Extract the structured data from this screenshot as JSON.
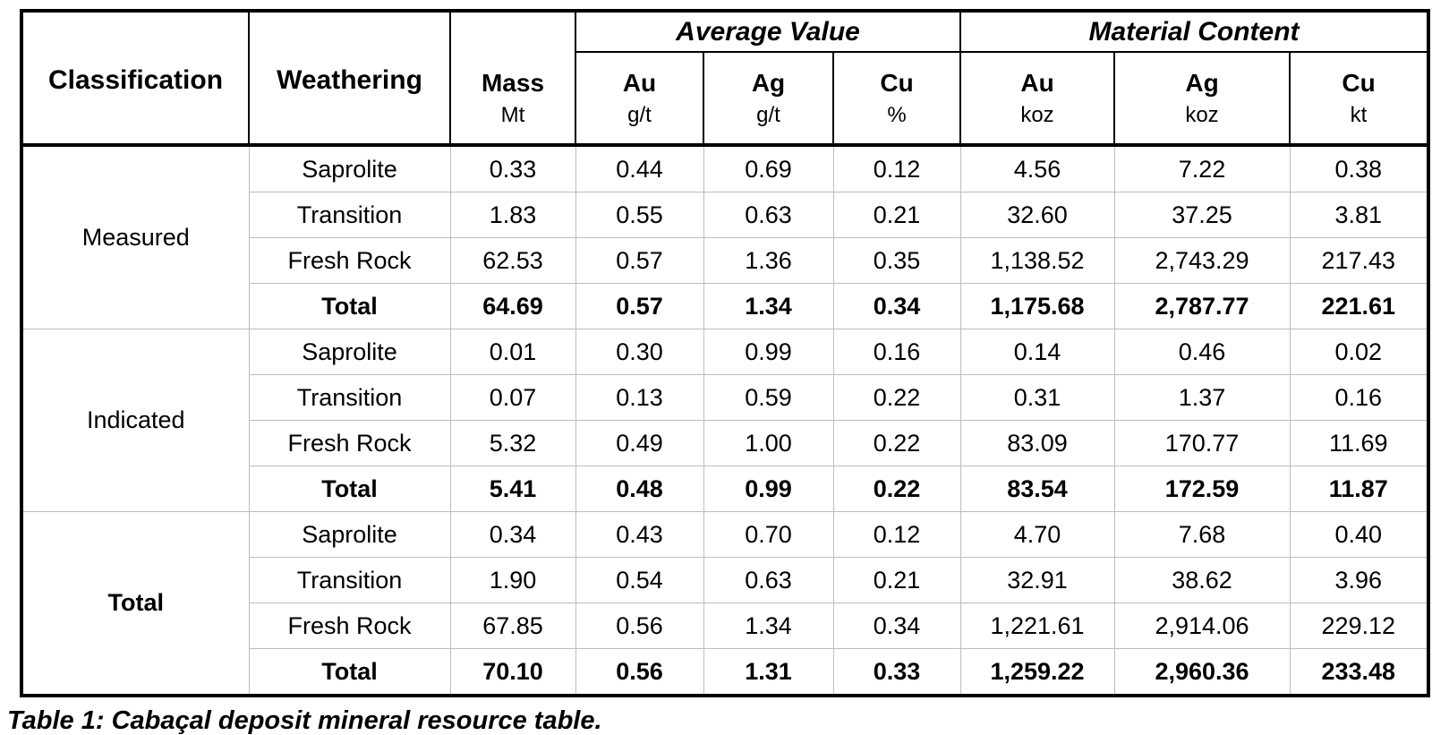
{
  "colors": {
    "background": "#ffffff",
    "heavy_border": "#000000",
    "gridline_gray": "#bdbdbd",
    "text": "#000000"
  },
  "table": {
    "header": {
      "classification": "Classification",
      "weathering": "Weathering",
      "mass_label": "Mass",
      "mass_unit": "Mt",
      "groups": [
        {
          "label": "Average Value",
          "columns": [
            {
              "element": "Au",
              "unit": "g/t"
            },
            {
              "element": "Ag",
              "unit": "g/t"
            },
            {
              "element": "Cu",
              "unit": "%"
            }
          ]
        },
        {
          "label": "Material Content",
          "columns": [
            {
              "element": "Au",
              "unit": "koz"
            },
            {
              "element": "Ag",
              "unit": "koz"
            },
            {
              "element": "Cu",
              "unit": "kt"
            }
          ]
        }
      ]
    },
    "sections": [
      {
        "classification": "Measured",
        "bold_classification": false,
        "rows": [
          {
            "weathering": "Saprolite",
            "mass": "0.33",
            "au_gt": "0.44",
            "ag_gt": "0.69",
            "cu_pct": "0.12",
            "au_koz": "4.56",
            "ag_koz": "7.22",
            "cu_kt": "0.38",
            "bold": false
          },
          {
            "weathering": "Transition",
            "mass": "1.83",
            "au_gt": "0.55",
            "ag_gt": "0.63",
            "cu_pct": "0.21",
            "au_koz": "32.60",
            "ag_koz": "37.25",
            "cu_kt": "3.81",
            "bold": false
          },
          {
            "weathering": "Fresh Rock",
            "mass": "62.53",
            "au_gt": "0.57",
            "ag_gt": "1.36",
            "cu_pct": "0.35",
            "au_koz": "1,138.52",
            "ag_koz": "2,743.29",
            "cu_kt": "217.43",
            "bold": false
          },
          {
            "weathering": "Total",
            "mass": "64.69",
            "au_gt": "0.57",
            "ag_gt": "1.34",
            "cu_pct": "0.34",
            "au_koz": "1,175.68",
            "ag_koz": "2,787.77",
            "cu_kt": "221.61",
            "bold": true
          }
        ]
      },
      {
        "classification": "Indicated",
        "bold_classification": false,
        "rows": [
          {
            "weathering": "Saprolite",
            "mass": "0.01",
            "au_gt": "0.30",
            "ag_gt": "0.99",
            "cu_pct": "0.16",
            "au_koz": "0.14",
            "ag_koz": "0.46",
            "cu_kt": "0.02",
            "bold": false
          },
          {
            "weathering": "Transition",
            "mass": "0.07",
            "au_gt": "0.13",
            "ag_gt": "0.59",
            "cu_pct": "0.22",
            "au_koz": "0.31",
            "ag_koz": "1.37",
            "cu_kt": "0.16",
            "bold": false
          },
          {
            "weathering": "Fresh Rock",
            "mass": "5.32",
            "au_gt": "0.49",
            "ag_gt": "1.00",
            "cu_pct": "0.22",
            "au_koz": "83.09",
            "ag_koz": "170.77",
            "cu_kt": "11.69",
            "bold": false
          },
          {
            "weathering": "Total",
            "mass": "5.41",
            "au_gt": "0.48",
            "ag_gt": "0.99",
            "cu_pct": "0.22",
            "au_koz": "83.54",
            "ag_koz": "172.59",
            "cu_kt": "11.87",
            "bold": true
          }
        ]
      },
      {
        "classification": "Total",
        "bold_classification": true,
        "rows": [
          {
            "weathering": "Saprolite",
            "mass": "0.34",
            "au_gt": "0.43",
            "ag_gt": "0.70",
            "cu_pct": "0.12",
            "au_koz": "4.70",
            "ag_koz": "7.68",
            "cu_kt": "0.40",
            "bold": false
          },
          {
            "weathering": "Transition",
            "mass": "1.90",
            "au_gt": "0.54",
            "ag_gt": "0.63",
            "cu_pct": "0.21",
            "au_koz": "32.91",
            "ag_koz": "38.62",
            "cu_kt": "3.96",
            "bold": false
          },
          {
            "weathering": "Fresh Rock",
            "mass": "67.85",
            "au_gt": "0.56",
            "ag_gt": "1.34",
            "cu_pct": "0.34",
            "au_koz": "1,221.61",
            "ag_koz": "2,914.06",
            "cu_kt": "229.12",
            "bold": false
          },
          {
            "weathering": "Total",
            "mass": "70.10",
            "au_gt": "0.56",
            "ag_gt": "1.31",
            "cu_pct": "0.33",
            "au_koz": "1,259.22",
            "ag_koz": "2,960.36",
            "cu_kt": "233.48",
            "bold": true
          }
        ]
      }
    ],
    "caption": "Table 1: Cabaçal deposit mineral resource table."
  },
  "chart_data": {
    "type": "table",
    "title": "Table 1: Cabaçal deposit mineral resource table.",
    "columns": [
      "Classification",
      "Weathering",
      "Mass (Mt)",
      "Average Value Au (g/t)",
      "Average Value Ag (g/t)",
      "Average Value Cu (%)",
      "Material Content Au (koz)",
      "Material Content Ag (koz)",
      "Material Content Cu (kt)"
    ],
    "rows": [
      [
        "Measured",
        "Saprolite",
        0.33,
        0.44,
        0.69,
        0.12,
        4.56,
        7.22,
        0.38
      ],
      [
        "Measured",
        "Transition",
        1.83,
        0.55,
        0.63,
        0.21,
        32.6,
        37.25,
        3.81
      ],
      [
        "Measured",
        "Fresh Rock",
        62.53,
        0.57,
        1.36,
        0.35,
        1138.52,
        2743.29,
        217.43
      ],
      [
        "Measured",
        "Total",
        64.69,
        0.57,
        1.34,
        0.34,
        1175.68,
        2787.77,
        221.61
      ],
      [
        "Indicated",
        "Saprolite",
        0.01,
        0.3,
        0.99,
        0.16,
        0.14,
        0.46,
        0.02
      ],
      [
        "Indicated",
        "Transition",
        0.07,
        0.13,
        0.59,
        0.22,
        0.31,
        1.37,
        0.16
      ],
      [
        "Indicated",
        "Fresh Rock",
        5.32,
        0.49,
        1.0,
        0.22,
        83.09,
        170.77,
        11.69
      ],
      [
        "Indicated",
        "Total",
        5.41,
        0.48,
        0.99,
        0.22,
        83.54,
        172.59,
        11.87
      ],
      [
        "Total",
        "Saprolite",
        0.34,
        0.43,
        0.7,
        0.12,
        4.7,
        7.68,
        0.4
      ],
      [
        "Total",
        "Transition",
        1.9,
        0.54,
        0.63,
        0.21,
        32.91,
        38.62,
        3.96
      ],
      [
        "Total",
        "Fresh Rock",
        67.85,
        0.56,
        1.34,
        0.34,
        1221.61,
        2914.06,
        229.12
      ],
      [
        "Total",
        "Total",
        70.1,
        0.56,
        1.31,
        0.33,
        1259.22,
        2960.36,
        233.48
      ]
    ]
  }
}
